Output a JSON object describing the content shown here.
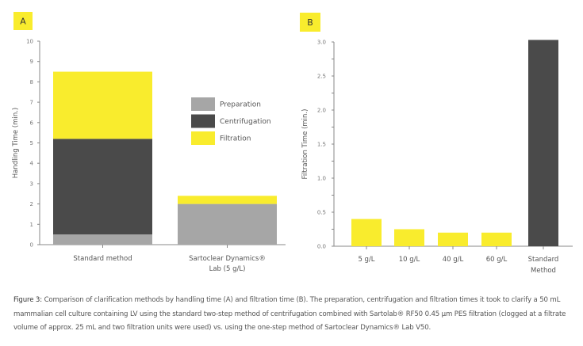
{
  "colors": {
    "preparation": "#a6a6a6",
    "centrifugation": "#4a4a4a",
    "filtration": "#f9ec2d",
    "panel_label_bg": "#f9ec2d",
    "axis": "#888888"
  },
  "chart_data": [
    {
      "panel_label": "A",
      "type": "bar",
      "stacked": true,
      "categories": [
        "Standard method",
        "Sartoclear Dynamics® Lab (5 g/L)"
      ],
      "category_lines": [
        [
          "Standard method"
        ],
        [
          "Sartoclear Dynamics®",
          "Lab (5 g/L)"
        ]
      ],
      "series": [
        {
          "name": "Preparation",
          "color": "#a6a6a6",
          "values": [
            0.5,
            2.0
          ]
        },
        {
          "name": "Centrifugation",
          "color": "#4a4a4a",
          "values": [
            4.7,
            0
          ]
        },
        {
          "name": "Filtration",
          "color": "#f9ec2d",
          "values": [
            3.3,
            0.4
          ]
        }
      ],
      "ylabel": "Handling Time (min.)",
      "xlabel": "",
      "ylim": [
        0,
        10
      ],
      "yticks": [
        "0",
        "1",
        "2",
        "3",
        "4",
        "5",
        "6",
        "7",
        "8",
        "9",
        "10"
      ],
      "grid": false,
      "legend": "right"
    },
    {
      "panel_label": "B",
      "type": "bar",
      "categories": [
        "5 g/L",
        "10 g/L",
        "40 g/L",
        "60 g/L",
        "Standard Method"
      ],
      "category_lines": [
        [
          "5 g/L"
        ],
        [
          "10 g/L"
        ],
        [
          "40 g/L"
        ],
        [
          "60 g/L"
        ],
        [
          "Standard",
          "Method"
        ]
      ],
      "values": [
        0.4,
        0.25,
        0.2,
        0.2,
        3.03
      ],
      "bar_colors": [
        "#f9ec2d",
        "#f9ec2d",
        "#f9ec2d",
        "#f9ec2d",
        "#4a4a4a"
      ],
      "ylabel": "Filtration Time (min.)",
      "xlabel": "",
      "ylim": [
        0,
        3.0
      ],
      "yticks": [
        "0.0",
        "0.5",
        "1.0",
        "1.5",
        "2.0",
        "2.5",
        "3.0"
      ],
      "grid": false
    }
  ],
  "caption": {
    "label": "Figure 3:",
    "text": " Comparison of clarification methods by handling time (A) and filtration time (B). The preparation, centrifugation and filtration times it took to clarify a 50 mL mammalian cell culture containing LV using the standard two-step method of centrifugation combined with Sartolab® RF50 0.45 µm PES filtration (clogged at a filtrate volume of approx. 25 mL and two filtration units were used) vs. using the one-step method of Sartoclear Dynamics® Lab V50."
  }
}
